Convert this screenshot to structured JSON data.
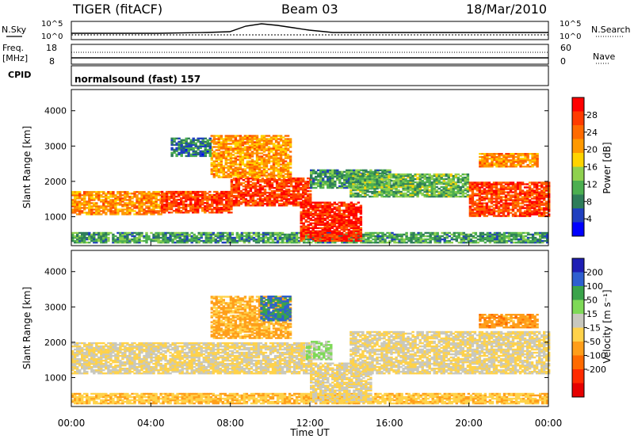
{
  "header": {
    "radar": "TIGER (fitACF)",
    "beam": "Beam 03",
    "date": "18/Mar/2010"
  },
  "noise_panel": {
    "left_label": "N.Sky",
    "right_label": "N.Search",
    "left_ticks": [
      "10^5",
      "10^0"
    ],
    "right_ticks": [
      "10^5",
      "10^0"
    ]
  },
  "freq_panel": {
    "left_label_1": "Freq.",
    "left_label_2": "[MHz]",
    "right_label": "Nave",
    "left_ticks": [
      "18",
      "8"
    ],
    "right_ticks": [
      "60",
      "0"
    ]
  },
  "cpid_panel": {
    "label": "CPID",
    "text": "normalsound (fast) 157"
  },
  "chart_data": [
    {
      "type": "heatmap",
      "name_key": "power",
      "ylabel": "Slant Range [km]",
      "ylim": [
        180,
        4600
      ],
      "yticks": [
        "1000",
        "2000",
        "3000",
        "4000"
      ],
      "ytick_values": [
        1000,
        2000,
        3000,
        4000
      ],
      "xlim_hours": [
        0,
        24
      ],
      "colorbar": {
        "label": "Power [dB]",
        "range": [
          0,
          32
        ],
        "ticks": [
          "4",
          "8",
          "12",
          "16",
          "20",
          "24",
          "28"
        ],
        "tick_values": [
          4,
          8,
          12,
          16,
          20,
          24,
          28
        ],
        "colors": [
          "#0000ff",
          "#1f3fbf",
          "#2e7d5a",
          "#4caf50",
          "#8fd14f",
          "#ffd400",
          "#ff9900",
          "#ff6a00",
          "#ff3b00",
          "#ff0000"
        ]
      },
      "bands": [
        {
          "t": [
            0,
            24
          ],
          "r0": 250,
          "r1": 550,
          "level": 10
        },
        {
          "t": [
            0.0,
            4.5
          ],
          "r0": 1050,
          "r1": 1700,
          "level": 22
        },
        {
          "t": [
            4.5,
            8.0
          ],
          "r0": 1100,
          "r1": 1700,
          "level": 27
        },
        {
          "t": [
            8.0,
            12.0
          ],
          "r0": 1300,
          "r1": 2100,
          "level": 27
        },
        {
          "t": [
            11.5,
            14.5
          ],
          "r0": 300,
          "r1": 1400,
          "level": 29
        },
        {
          "t": [
            7.0,
            11.0
          ],
          "r0": 2100,
          "r1": 3300,
          "level": 21
        },
        {
          "t": [
            12.0,
            16.0
          ],
          "r0": 1800,
          "r1": 2300,
          "level": 10
        },
        {
          "t": [
            14.0,
            20.0
          ],
          "r0": 1550,
          "r1": 2200,
          "level": 12
        },
        {
          "t": [
            20.0,
            24.0
          ],
          "r0": 1000,
          "r1": 1950,
          "level": 27
        },
        {
          "t": [
            20.5,
            23.5
          ],
          "r0": 2400,
          "r1": 2800,
          "level": 22
        },
        {
          "t": [
            5.0,
            7.0
          ],
          "r0": 2700,
          "r1": 3200,
          "level": 8
        }
      ]
    },
    {
      "type": "heatmap",
      "name_key": "velocity",
      "ylabel": "Slant Range [km]",
      "ylim": [
        180,
        4600
      ],
      "yticks": [
        "1000",
        "2000",
        "3000",
        "4000"
      ],
      "ytick_values": [
        1000,
        2000,
        3000,
        4000
      ],
      "xlim_hours": [
        0,
        24
      ],
      "xlabel": "Time UT",
      "xticks": [
        "00:00",
        "04:00",
        "08:00",
        "12:00",
        "16:00",
        "20:00",
        "00:00"
      ],
      "xtick_values": [
        0,
        4,
        8,
        12,
        16,
        20,
        24
      ],
      "colorbar": {
        "label": "Velocity [m s⁻¹]",
        "range": [
          -250,
          250
        ],
        "ticks": [
          "200",
          "100",
          "50",
          "15",
          "-15",
          "-50",
          "-100",
          "-200"
        ],
        "tick_values": [
          200,
          100,
          50,
          15,
          -15,
          -50,
          -100,
          -200
        ],
        "colors": [
          "#1e1eb4",
          "#2e5fd0",
          "#3aa34a",
          "#7ed957",
          "#c8c8be",
          "#ffd24a",
          "#ff9e1a",
          "#ff6a00",
          "#ff2b00",
          "#e60000"
        ]
      },
      "bands": [
        {
          "t": [
            0,
            24
          ],
          "r0": 250,
          "r1": 550,
          "level": -40
        },
        {
          "t": [
            0.0,
            12.0
          ],
          "r0": 1100,
          "r1": 2000,
          "level": 0
        },
        {
          "t": [
            12.0,
            15.0
          ],
          "r0": 300,
          "r1": 1400,
          "level": 0
        },
        {
          "t": [
            14.0,
            24.0
          ],
          "r0": 1100,
          "r1": 2300,
          "level": 0
        },
        {
          "t": [
            7.0,
            11.0
          ],
          "r0": 2100,
          "r1": 3300,
          "level": -60
        },
        {
          "t": [
            9.5,
            11.0
          ],
          "r0": 2600,
          "r1": 3300,
          "level": 150
        },
        {
          "t": [
            20.5,
            23.5
          ],
          "r0": 2400,
          "r1": 2800,
          "level": -80
        },
        {
          "t": [
            11.8,
            13.0
          ],
          "r0": 1500,
          "r1": 2000,
          "level": 60
        }
      ]
    }
  ]
}
